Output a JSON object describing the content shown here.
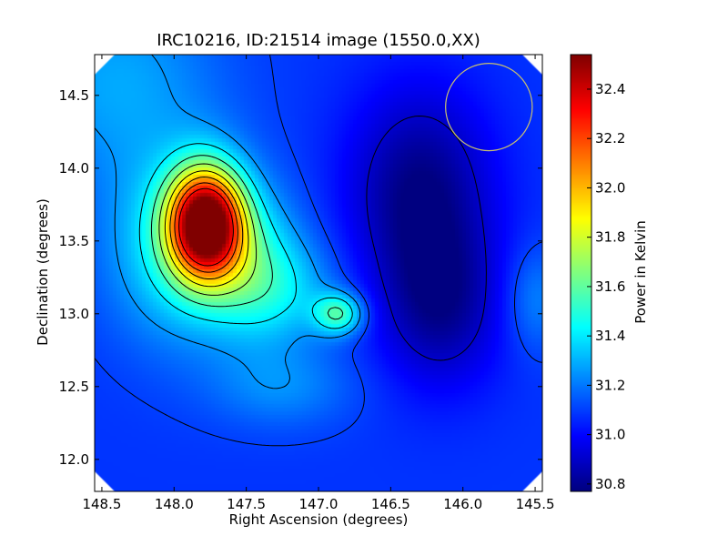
{
  "chart_data": {
    "type": "heatmap",
    "title": "IRC10216, ID:21514 image (1550.0,XX)",
    "xlabel": "Right Ascension (degrees)",
    "ylabel": "Declination (degrees)",
    "xlim": [
      148.55,
      145.45
    ],
    "ylim": [
      11.78,
      14.78
    ],
    "x_ticks": [
      148.5,
      148.0,
      147.5,
      147.0,
      146.5,
      146.0,
      145.5
    ],
    "x_tick_labels": [
      "148.5",
      "148.0",
      "147.5",
      "147.0",
      "146.5",
      "146.0",
      "145.5"
    ],
    "y_ticks": [
      12.0,
      12.5,
      13.0,
      13.5,
      14.0,
      14.5
    ],
    "y_tick_labels": [
      "12.0",
      "12.5",
      "13.0",
      "13.5",
      "14.0",
      "14.5"
    ],
    "colorbar": {
      "label": "Power in Kelvin",
      "range": [
        30.77,
        32.54
      ],
      "ticks": [
        30.8,
        31.0,
        31.2,
        31.4,
        31.6,
        31.8,
        32.0,
        32.2,
        32.4
      ],
      "tick_labels": [
        "30.8",
        "31.0",
        "31.2",
        "31.4",
        "31.6",
        "31.8",
        "32.0",
        "32.2",
        "32.4"
      ],
      "colormap": "jet"
    },
    "background_level": 31.08,
    "sources": [
      {
        "ra": 147.78,
        "dec": 13.62,
        "amplitude": 1.45,
        "sigma_ra": 0.18,
        "sigma_dec": 0.26
      },
      {
        "ra": 147.95,
        "dec": 13.45,
        "amplitude": 0.35,
        "sigma_ra": 0.35,
        "sigma_dec": 0.45
      },
      {
        "ra": 147.45,
        "dec": 13.35,
        "amplitude": 0.25,
        "sigma_ra": 0.25,
        "sigma_dec": 0.35
      },
      {
        "ra": 146.86,
        "dec": 13.0,
        "amplitude": 0.45,
        "sigma_ra": 0.12,
        "sigma_dec": 0.1
      },
      {
        "ra": 147.25,
        "dec": 13.15,
        "amplitude": 0.2,
        "sigma_ra": 0.3,
        "sigma_dec": 0.25
      },
      {
        "ra": 148.4,
        "dec": 14.6,
        "amplitude": 0.2,
        "sigma_ra": 0.5,
        "sigma_dec": 0.5
      },
      {
        "ra": 147.25,
        "dec": 12.5,
        "amplitude": 0.15,
        "sigma_ra": 0.35,
        "sigma_dec": 0.2
      },
      {
        "ra": 145.5,
        "dec": 13.1,
        "amplitude": 0.15,
        "sigma_ra": 0.15,
        "sigma_dec": 0.25
      },
      {
        "ra": 146.3,
        "dec": 13.85,
        "amplitude": -0.3,
        "sigma_ra": 0.35,
        "sigma_dec": 0.5
      },
      {
        "ra": 146.15,
        "dec": 13.05,
        "amplitude": -0.25,
        "sigma_ra": 0.3,
        "sigma_dec": 0.4
      }
    ],
    "contour_levels": [
      30.9,
      31.1,
      31.25,
      31.4,
      31.55,
      31.7,
      31.85,
      32.0,
      32.15,
      32.3
    ],
    "beam_circle": {
      "ra": 145.82,
      "dec": 14.42,
      "radius": 0.3,
      "color": "#c8c070"
    },
    "masked_corners": true,
    "grid": false
  }
}
